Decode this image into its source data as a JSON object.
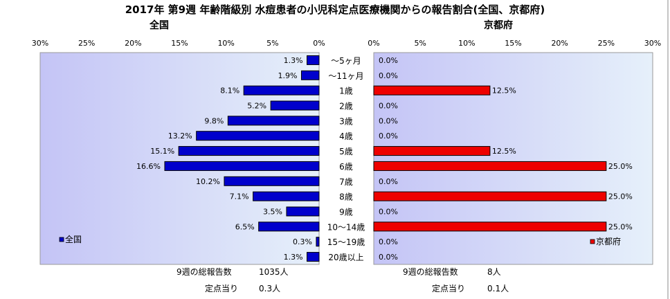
{
  "title": "2017年 第9週 年齢階級別 水痘患者の小児科定点医療機関からの報告割合(全国、京都府)",
  "chart_data": {
    "type": "bar",
    "categories": [
      "～5ヶ月",
      "～11ヶ月",
      "1歳",
      "2歳",
      "3歳",
      "4歳",
      "5歳",
      "6歳",
      "7歳",
      "8歳",
      "9歳",
      "10～14歳",
      "15～19歳",
      "20歳以上"
    ],
    "panels": [
      {
        "subtitle": "全国",
        "legend": "全国",
        "legend_position": "bottom-left",
        "color": "#0000cc",
        "values": [
          1.3,
          1.9,
          8.1,
          5.2,
          9.8,
          13.2,
          15.1,
          16.6,
          10.2,
          7.1,
          3.5,
          6.5,
          0.3,
          1.3
        ],
        "value_labels": [
          "1.3%",
          "1.9%",
          "8.1%",
          "5.2%",
          "9.8%",
          "13.2%",
          "15.1%",
          "16.6%",
          "10.2%",
          "7.1%",
          "3.5%",
          "6.5%",
          "0.3%",
          "1.3%"
        ],
        "xlim": [
          0,
          30
        ],
        "ticks": [
          "30%",
          "25%",
          "20%",
          "15%",
          "10%",
          "5%",
          "0%"
        ],
        "total_label": "9週の総報告数",
        "total_value": "1035人",
        "per_label": "定点当り",
        "per_value": "0.3人"
      },
      {
        "subtitle": "京都府",
        "legend": "京都府",
        "legend_position": "bottom-right",
        "color": "#ee0000",
        "values": [
          0.0,
          0.0,
          12.5,
          0.0,
          0.0,
          0.0,
          12.5,
          25.0,
          0.0,
          25.0,
          0.0,
          25.0,
          0.0,
          0.0
        ],
        "value_labels": [
          "0.0%",
          "0.0%",
          "12.5%",
          "0.0%",
          "0.0%",
          "0.0%",
          "12.5%",
          "25.0%",
          "0.0%",
          "25.0%",
          "0.0%",
          "25.0%",
          "0.0%",
          "0.0%"
        ],
        "xlim": [
          0,
          30
        ],
        "ticks": [
          "0%",
          "5%",
          "10%",
          "15%",
          "20%",
          "25%",
          "30%"
        ],
        "total_label": "9週の総報告数",
        "total_value": "8人",
        "per_label": "定点当り",
        "per_value": "0.1人"
      }
    ]
  }
}
